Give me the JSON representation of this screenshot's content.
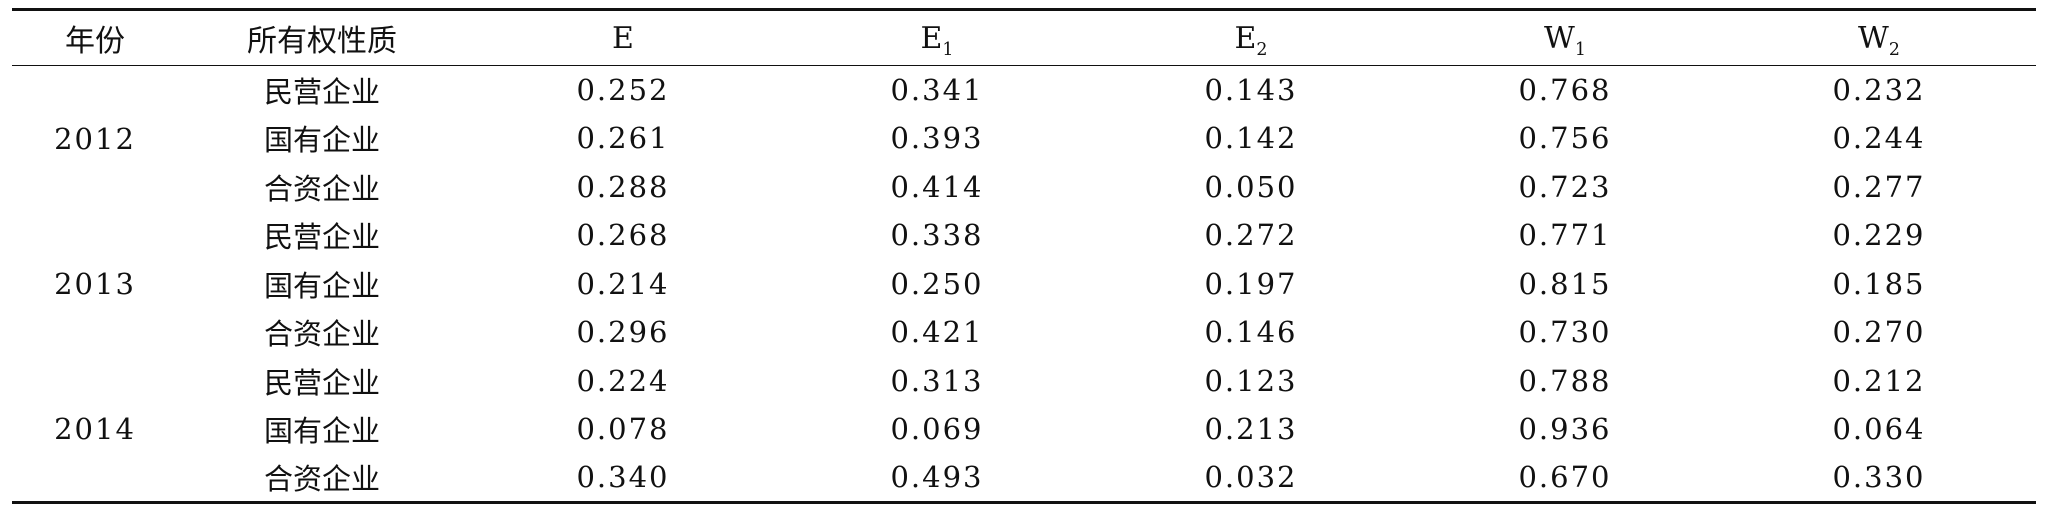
{
  "table": {
    "headers": {
      "year": "年份",
      "ownership": "所有权性质",
      "cols": [
        {
          "base": "E",
          "sub": ""
        },
        {
          "base": "E",
          "sub": "1"
        },
        {
          "base": "E",
          "sub": "2"
        },
        {
          "base": "W",
          "sub": "1"
        },
        {
          "base": "W",
          "sub": "2"
        }
      ]
    },
    "groups": [
      {
        "year": "2012",
        "rows": [
          {
            "ownership": "民营企业",
            "values": [
              "0.252",
              "0.341",
              "0.143",
              "0.768",
              "0.232"
            ]
          },
          {
            "ownership": "国有企业",
            "values": [
              "0.261",
              "0.393",
              "0.142",
              "0.756",
              "0.244"
            ]
          },
          {
            "ownership": "合资企业",
            "values": [
              "0.288",
              "0.414",
              "0.050",
              "0.723",
              "0.277"
            ]
          }
        ]
      },
      {
        "year": "2013",
        "rows": [
          {
            "ownership": "民营企业",
            "values": [
              "0.268",
              "0.338",
              "0.272",
              "0.771",
              "0.229"
            ]
          },
          {
            "ownership": "国有企业",
            "values": [
              "0.214",
              "0.250",
              "0.197",
              "0.815",
              "0.185"
            ]
          },
          {
            "ownership": "合资企业",
            "values": [
              "0.296",
              "0.421",
              "0.146",
              "0.730",
              "0.270"
            ]
          }
        ]
      },
      {
        "year": "2014",
        "rows": [
          {
            "ownership": "民营企业",
            "values": [
              "0.224",
              "0.313",
              "0.123",
              "0.788",
              "0.212"
            ]
          },
          {
            "ownership": "国有企业",
            "values": [
              "0.078",
              "0.069",
              "0.213",
              "0.936",
              "0.064"
            ]
          },
          {
            "ownership": "合资企业",
            "values": [
              "0.340",
              "0.493",
              "0.032",
              "0.670",
              "0.330"
            ]
          }
        ]
      }
    ]
  }
}
